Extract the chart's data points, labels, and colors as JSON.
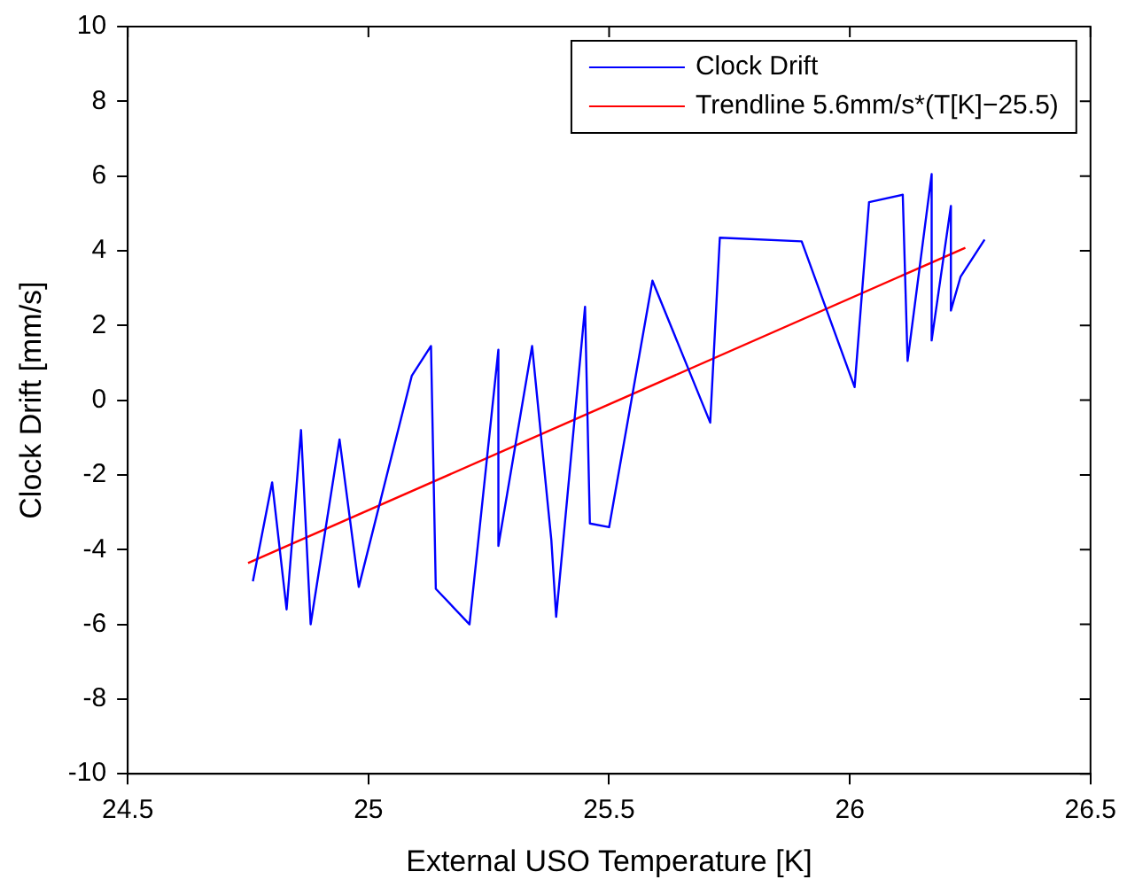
{
  "chart_data": {
    "type": "line",
    "xlabel": "External USO Temperature [K]",
    "ylabel": "Clock Drift [mm/s]",
    "xlim": [
      24.5,
      26.5
    ],
    "xticks": [
      24.5,
      25,
      25.5,
      26,
      26.5
    ],
    "ylim": [
      -10,
      10
    ],
    "yticks": [
      -10,
      -8,
      -6,
      -4,
      -2,
      0,
      2,
      4,
      6,
      8,
      10
    ],
    "grid": false,
    "legend": "top right",
    "marker": "none",
    "line_style": "solid",
    "series": [
      {
        "name": "Clock Drift",
        "color": "#0000ff",
        "x": [
          24.76,
          24.8,
          24.83,
          24.86,
          24.88,
          24.94,
          24.98,
          25.09,
          25.13,
          25.14,
          25.21,
          25.27,
          25.27,
          25.34,
          25.38,
          25.39,
          25.45,
          25.46,
          25.5,
          25.59,
          25.71,
          25.73,
          25.9,
          26.01,
          26.04,
          26.11,
          26.12,
          26.17,
          26.17,
          26.21,
          26.21,
          26.23,
          26.28
        ],
        "values": [
          -4.85,
          -2.2,
          -5.6,
          -0.8,
          -6.0,
          -1.05,
          -5.0,
          0.65,
          1.45,
          -5.05,
          -6.0,
          1.35,
          -3.9,
          1.45,
          -3.75,
          -5.8,
          2.5,
          -3.3,
          -3.4,
          3.2,
          -0.6,
          4.35,
          4.25,
          0.35,
          5.3,
          5.5,
          1.05,
          6.05,
          1.6,
          5.2,
          2.4,
          3.3,
          4.3
        ]
      },
      {
        "name": "Trendline 5.6mm/s*(T[K]−25.5)",
        "color": "#ff0000",
        "x": [
          24.75,
          26.24
        ],
        "values": [
          -4.36,
          4.08
        ]
      }
    ]
  }
}
